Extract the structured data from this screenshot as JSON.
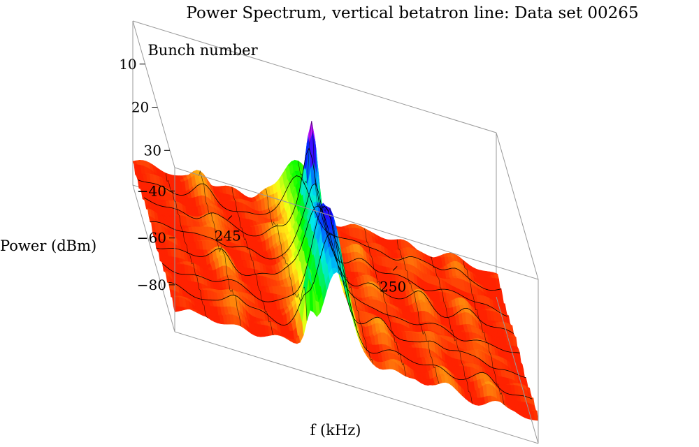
{
  "chart_data": {
    "type": "surface3d",
    "title": "Power Spectrum, vertical betatron line: Data set 00265",
    "xlabel": "f (kHz)",
    "ylabel": "Bunch number",
    "zlabel": "Power (dBm)",
    "x_ticks": [
      "245",
      "250"
    ],
    "y_ticks": [
      "10",
      "20",
      "30"
    ],
    "z_ticks": [
      "−40",
      "−60",
      "−80"
    ],
    "xlim": [
      242.0,
      253.0
    ],
    "ylim": [
      0,
      34
    ],
    "zlim": [
      -100,
      -30
    ],
    "colormap": "hue (red low → yellow → green → cyan → blue → magenta high)",
    "surface": {
      "background_dBm": -90,
      "sidebands_kHz": [
        244.0,
        246.0,
        247.4,
        248.6,
        250.2,
        251.6
      ],
      "peaks": [
        {
          "f_kHz": 246.9,
          "bunch": 26,
          "power_dBm": -42
        },
        {
          "f_kHz": 247.0,
          "bunch": 11,
          "power_dBm": -30
        },
        {
          "f_kHz": 246.1,
          "bunch": 32,
          "power_dBm": -52
        }
      ]
    }
  }
}
